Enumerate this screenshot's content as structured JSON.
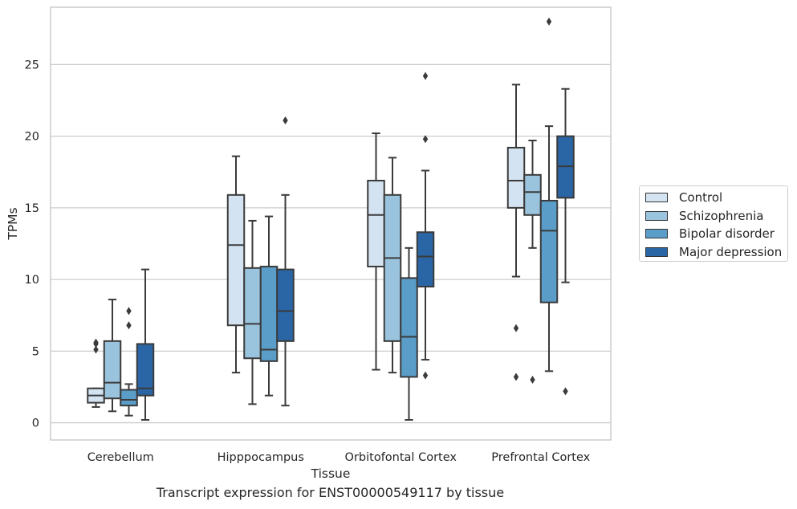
{
  "chart_data": {
    "type": "box",
    "caption": "Transcript expression for ENST00000549117 by tissue",
    "xlabel": "Tissue",
    "ylabel": "TPMs",
    "ylim": [
      -1.2,
      29
    ],
    "yticks": [
      0,
      5,
      10,
      15,
      20,
      25
    ],
    "grid": "horizontal",
    "legend_position": "right",
    "categories": [
      "Cerebellum",
      "Hipppocampus",
      "Orbitofontal Cortex",
      "Prefrontal Cortex"
    ],
    "series": [
      {
        "name": "Control",
        "color": "#d4e3f2",
        "boxes": [
          {
            "whislo": 1.1,
            "q1": 1.4,
            "med": 1.9,
            "q3": 2.4,
            "whishi": 2.4,
            "fliers": [
              5.1,
              5.5,
              5.6
            ]
          },
          {
            "whislo": 3.5,
            "q1": 6.8,
            "med": 12.4,
            "q3": 15.9,
            "whishi": 18.6,
            "fliers": []
          },
          {
            "whislo": 3.7,
            "q1": 10.9,
            "med": 14.5,
            "q3": 16.9,
            "whishi": 20.2,
            "fliers": []
          },
          {
            "whislo": 10.2,
            "q1": 15.0,
            "med": 16.9,
            "q3": 19.2,
            "whishi": 23.6,
            "fliers": [
              3.2,
              6.6
            ]
          }
        ]
      },
      {
        "name": "Schizophrenia",
        "color": "#9ac4de",
        "boxes": [
          {
            "whislo": 0.8,
            "q1": 1.7,
            "med": 2.8,
            "q3": 5.7,
            "whishi": 8.6,
            "fliers": []
          },
          {
            "whislo": 1.3,
            "q1": 4.5,
            "med": 6.9,
            "q3": 10.8,
            "whishi": 14.1,
            "fliers": []
          },
          {
            "whislo": 3.5,
            "q1": 5.7,
            "med": 11.5,
            "q3": 15.9,
            "whishi": 18.5,
            "fliers": []
          },
          {
            "whislo": 12.2,
            "q1": 14.5,
            "med": 16.1,
            "q3": 17.3,
            "whishi": 19.7,
            "fliers": [
              3.0
            ]
          }
        ]
      },
      {
        "name": "Bipolar disorder",
        "color": "#5a9dc8",
        "boxes": [
          {
            "whislo": 0.5,
            "q1": 1.2,
            "med": 1.6,
            "q3": 2.3,
            "whishi": 2.7,
            "fliers": [
              6.8,
              7.8
            ]
          },
          {
            "whislo": 1.9,
            "q1": 4.3,
            "med": 5.1,
            "q3": 10.9,
            "whishi": 14.4,
            "fliers": []
          },
          {
            "whislo": 0.2,
            "q1": 3.2,
            "med": 6.0,
            "q3": 10.1,
            "whishi": 12.2,
            "fliers": []
          },
          {
            "whislo": 3.6,
            "q1": 8.4,
            "med": 13.4,
            "q3": 15.5,
            "whishi": 20.7,
            "fliers": [
              28.0
            ]
          }
        ]
      },
      {
        "name": "Major depression",
        "color": "#2a66a5",
        "boxes": [
          {
            "whislo": 0.2,
            "q1": 1.9,
            "med": 2.4,
            "q3": 5.5,
            "whishi": 10.7,
            "fliers": []
          },
          {
            "whislo": 1.2,
            "q1": 5.7,
            "med": 7.8,
            "q3": 10.7,
            "whishi": 15.9,
            "fliers": [
              21.1
            ]
          },
          {
            "whislo": 4.4,
            "q1": 9.5,
            "med": 11.6,
            "q3": 13.3,
            "whishi": 17.6,
            "fliers": [
              3.3,
              19.8,
              24.2
            ]
          },
          {
            "whislo": 9.8,
            "q1": 15.7,
            "med": 17.9,
            "q3": 20.0,
            "whishi": 23.3,
            "fliers": [
              2.2
            ]
          }
        ]
      }
    ]
  }
}
